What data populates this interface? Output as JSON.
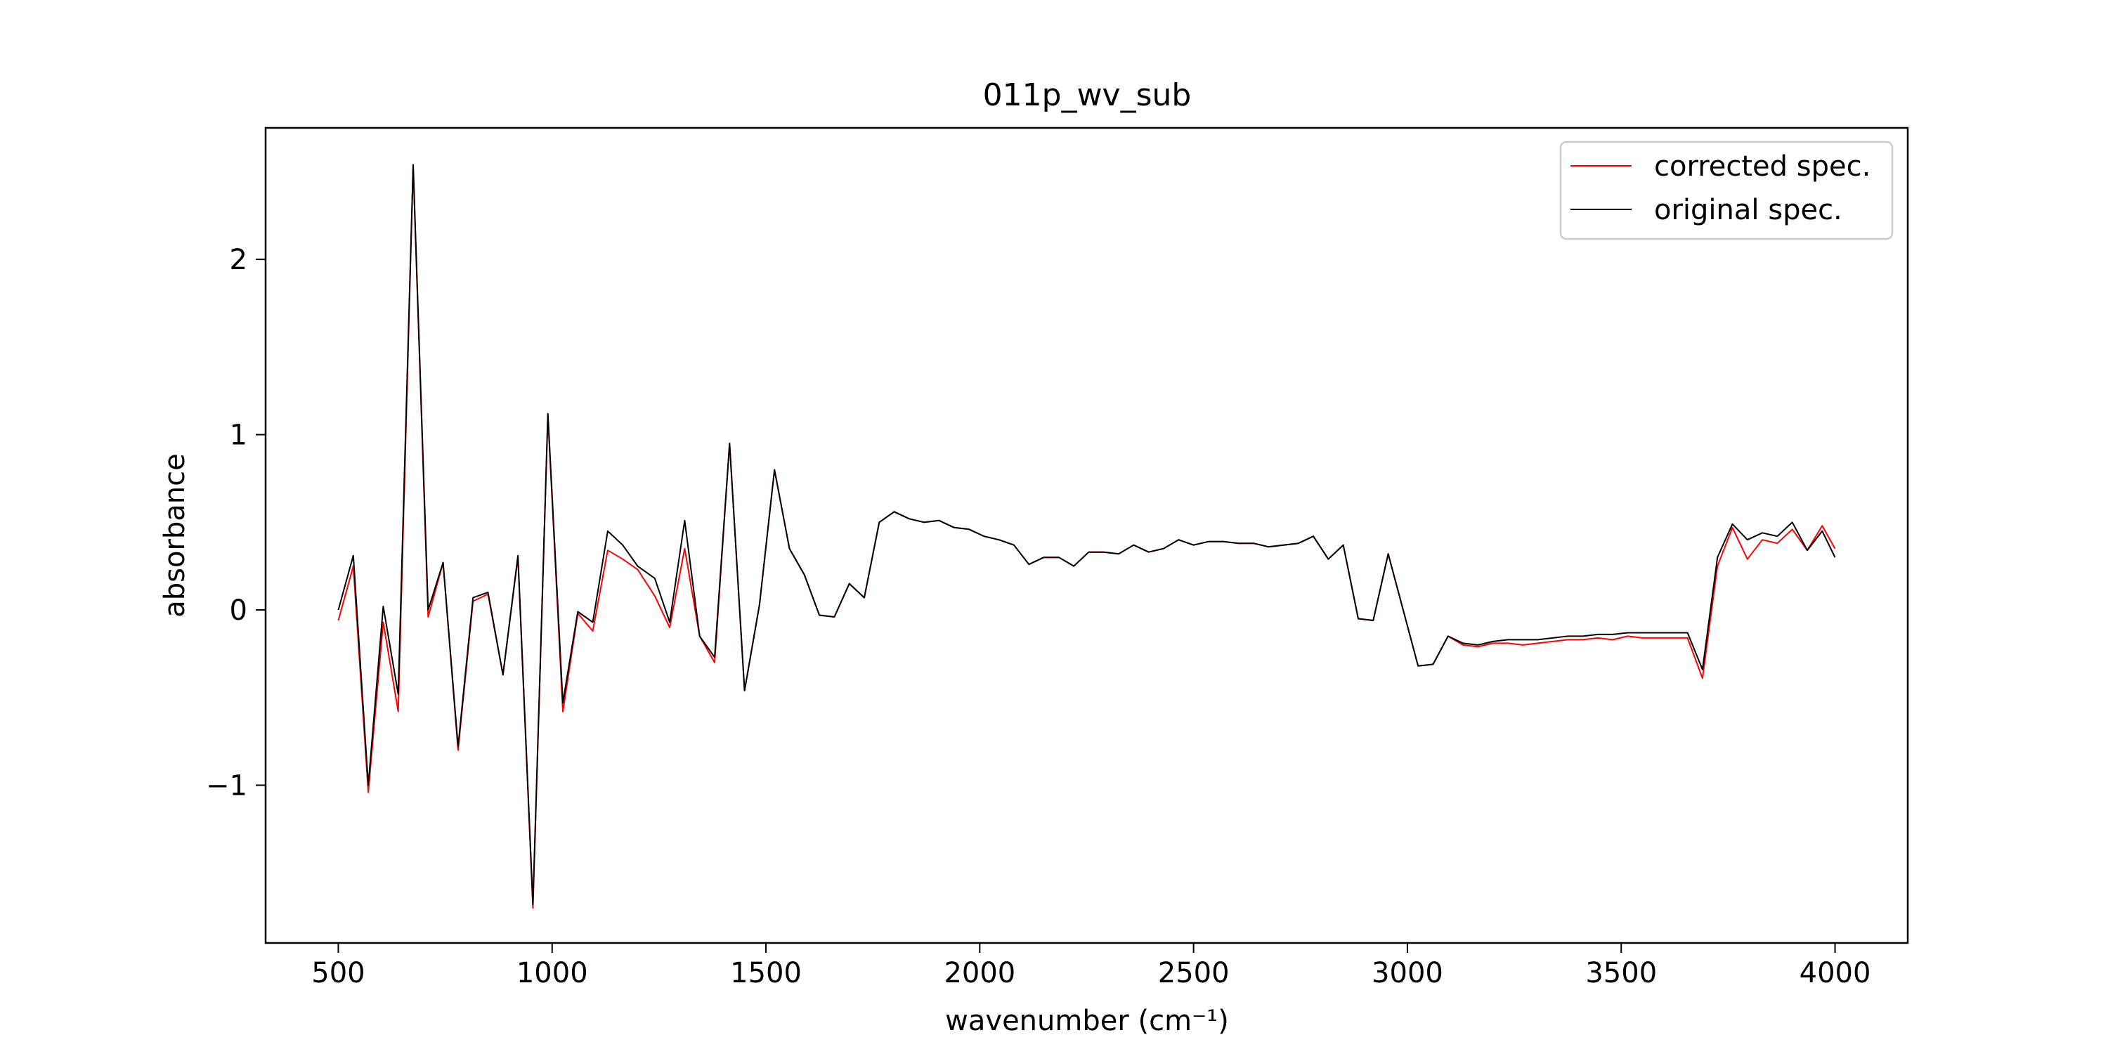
{
  "chart_data": {
    "type": "line",
    "title": "011p_wv_sub",
    "xlabel": "wavenumber (cm⁻¹)",
    "ylabel": "absorbance",
    "xlim": [
      330,
      4170
    ],
    "ylim": [
      -1.9,
      2.75
    ],
    "xticks": [
      500,
      1000,
      1500,
      2000,
      2500,
      3000,
      3500,
      4000
    ],
    "xtick_labels": [
      "500",
      "1000",
      "1500",
      "2000",
      "2500",
      "3000",
      "3500",
      "4000"
    ],
    "yticks": [
      -1,
      0,
      1,
      2
    ],
    "ytick_labels": [
      "−1",
      "0",
      "1",
      "2"
    ],
    "grid": false,
    "legend": "top-right",
    "series": [
      {
        "name": "corrected spec.",
        "color": "#ff0000",
        "x": [
          500,
          535,
          570,
          605,
          640,
          675,
          710,
          745,
          780,
          815,
          850,
          885,
          920,
          955,
          990,
          1025,
          1060,
          1095,
          1130,
          1165,
          1200,
          1240,
          1275,
          1310,
          1345,
          1380,
          1415,
          1450,
          1485,
          1520,
          1555,
          1590,
          1625,
          1660,
          1695,
          1730,
          1765,
          1800,
          1835,
          1870,
          1905,
          1940,
          1975,
          2010,
          2045,
          2080,
          2115,
          2150,
          2185,
          2220,
          2255,
          2290,
          2325,
          2360,
          2395,
          2430,
          2465,
          2500,
          2535,
          2570,
          2605,
          2640,
          2675,
          2710,
          2745,
          2780,
          2815,
          2850,
          2885,
          2920,
          2955,
          2990,
          3025,
          3060,
          3095,
          3130,
          3165,
          3200,
          3235,
          3270,
          3305,
          3340,
          3375,
          3410,
          3445,
          3480,
          3515,
          3550,
          3585,
          3620,
          3655,
          3690,
          3725,
          3760,
          3795,
          3830,
          3865,
          3900,
          3935,
          3970,
          4000
        ],
        "y": [
          -0.06,
          0.25,
          -1.04,
          -0.07,
          -0.58,
          2.53,
          -0.04,
          0.27,
          -0.8,
          0.05,
          0.09,
          -0.37,
          0.3,
          -1.7,
          1.11,
          -0.58,
          -0.02,
          -0.12,
          0.34,
          0.29,
          0.23,
          0.08,
          -0.1,
          0.35,
          -0.15,
          -0.3,
          0.95,
          -0.46,
          0.03,
          0.8,
          0.35,
          0.2,
          -0.03,
          -0.04,
          0.15,
          0.07,
          0.5,
          0.56,
          0.52,
          0.5,
          0.51,
          0.47,
          0.46,
          0.42,
          0.4,
          0.37,
          0.26,
          0.3,
          0.3,
          0.25,
          0.33,
          0.33,
          0.32,
          0.37,
          0.33,
          0.35,
          0.4,
          0.37,
          0.39,
          0.39,
          0.38,
          0.38,
          0.36,
          0.37,
          0.38,
          0.42,
          0.29,
          0.37,
          -0.05,
          -0.06,
          0.32,
          0.0,
          -0.32,
          -0.31,
          -0.15,
          -0.2,
          -0.21,
          -0.19,
          -0.19,
          -0.2,
          -0.19,
          -0.18,
          -0.17,
          -0.17,
          -0.16,
          -0.17,
          -0.15,
          -0.16,
          -0.16,
          -0.16,
          -0.16,
          -0.39,
          0.25,
          0.47,
          0.29,
          0.4,
          0.38,
          0.46,
          0.34,
          0.48,
          0.35
        ]
      },
      {
        "name": "original spec.",
        "color": "#000000",
        "x": [
          500,
          535,
          570,
          605,
          640,
          675,
          710,
          745,
          780,
          815,
          850,
          885,
          920,
          955,
          990,
          1025,
          1060,
          1095,
          1130,
          1165,
          1200,
          1240,
          1275,
          1310,
          1345,
          1380,
          1415,
          1450,
          1485,
          1520,
          1555,
          1590,
          1625,
          1660,
          1695,
          1730,
          1765,
          1800,
          1835,
          1870,
          1905,
          1940,
          1975,
          2010,
          2045,
          2080,
          2115,
          2150,
          2185,
          2220,
          2255,
          2290,
          2325,
          2360,
          2395,
          2430,
          2465,
          2500,
          2535,
          2570,
          2605,
          2640,
          2675,
          2710,
          2745,
          2780,
          2815,
          2850,
          2885,
          2920,
          2955,
          2990,
          3025,
          3060,
          3095,
          3130,
          3165,
          3200,
          3235,
          3270,
          3305,
          3340,
          3375,
          3410,
          3445,
          3480,
          3515,
          3550,
          3585,
          3620,
          3655,
          3690,
          3725,
          3760,
          3795,
          3830,
          3865,
          3900,
          3935,
          3970,
          4000
        ],
        "y": [
          0.0,
          0.31,
          -1.0,
          0.02,
          -0.48,
          2.54,
          0.0,
          0.27,
          -0.78,
          0.07,
          0.1,
          -0.37,
          0.31,
          -1.68,
          1.12,
          -0.53,
          -0.01,
          -0.07,
          0.45,
          0.37,
          0.25,
          0.18,
          -0.07,
          0.51,
          -0.15,
          -0.27,
          0.95,
          -0.46,
          0.03,
          0.8,
          0.35,
          0.2,
          -0.03,
          -0.04,
          0.15,
          0.07,
          0.5,
          0.56,
          0.52,
          0.5,
          0.51,
          0.47,
          0.46,
          0.42,
          0.4,
          0.37,
          0.26,
          0.3,
          0.3,
          0.25,
          0.33,
          0.33,
          0.32,
          0.37,
          0.33,
          0.35,
          0.4,
          0.37,
          0.39,
          0.39,
          0.38,
          0.38,
          0.36,
          0.37,
          0.38,
          0.42,
          0.29,
          0.37,
          -0.05,
          -0.06,
          0.32,
          0.0,
          -0.32,
          -0.31,
          -0.15,
          -0.19,
          -0.2,
          -0.18,
          -0.17,
          -0.17,
          -0.17,
          -0.16,
          -0.15,
          -0.15,
          -0.14,
          -0.14,
          -0.13,
          -0.13,
          -0.13,
          -0.13,
          -0.13,
          -0.34,
          0.3,
          0.49,
          0.4,
          0.44,
          0.42,
          0.5,
          0.34,
          0.45,
          0.3
        ]
      }
    ]
  }
}
